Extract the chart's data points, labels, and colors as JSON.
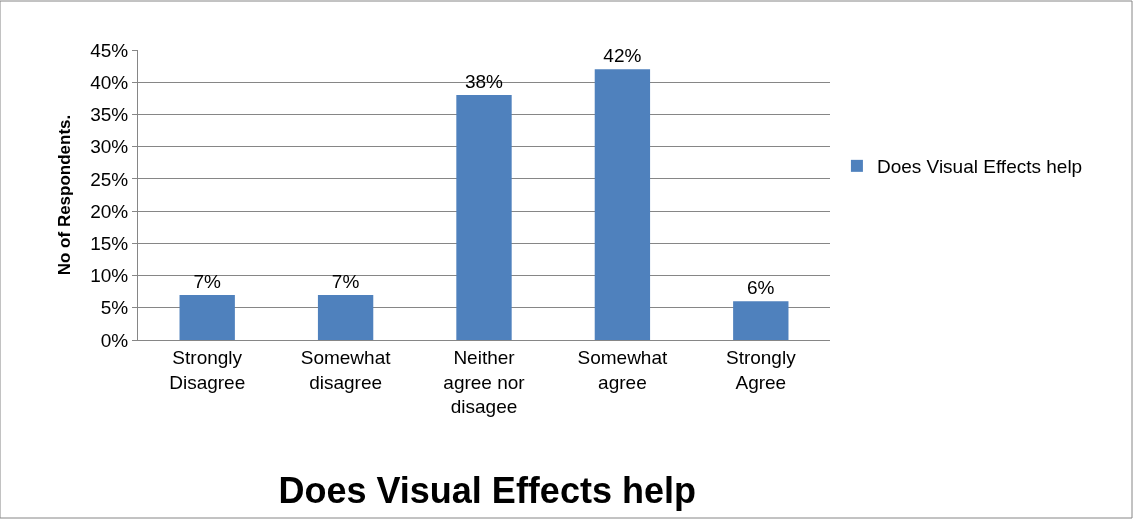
{
  "chart_data": {
    "type": "bar",
    "title": "Does Visual Effects help",
    "ylabel": "No of Respondents.",
    "categories": [
      "Strongly Disagree",
      "Somewhat disagree",
      "Neither agree nor disagee",
      "Somewhat agree",
      "Strongly Agree"
    ],
    "series": [
      {
        "name": "Does Visual Effects help",
        "color": "#4f81bd",
        "values": [
          7,
          7,
          38,
          42,
          6
        ],
        "value_labels": [
          "7%",
          "7%",
          "38%",
          "42%",
          "6%"
        ]
      }
    ],
    "ylim": [
      0,
      45
    ],
    "yticks": [
      {
        "value": 0,
        "label": "0%"
      },
      {
        "value": 5,
        "label": "5%"
      },
      {
        "value": 10,
        "label": "10%"
      },
      {
        "value": 15,
        "label": "15%"
      },
      {
        "value": 20,
        "label": "20%"
      },
      {
        "value": 25,
        "label": "25%"
      },
      {
        "value": 30,
        "label": "30%"
      },
      {
        "value": 35,
        "label": "35%"
      },
      {
        "value": 40,
        "label": "40%"
      },
      {
        "value": 45,
        "label": "45%"
      }
    ],
    "grid": "y",
    "legend": "right"
  }
}
